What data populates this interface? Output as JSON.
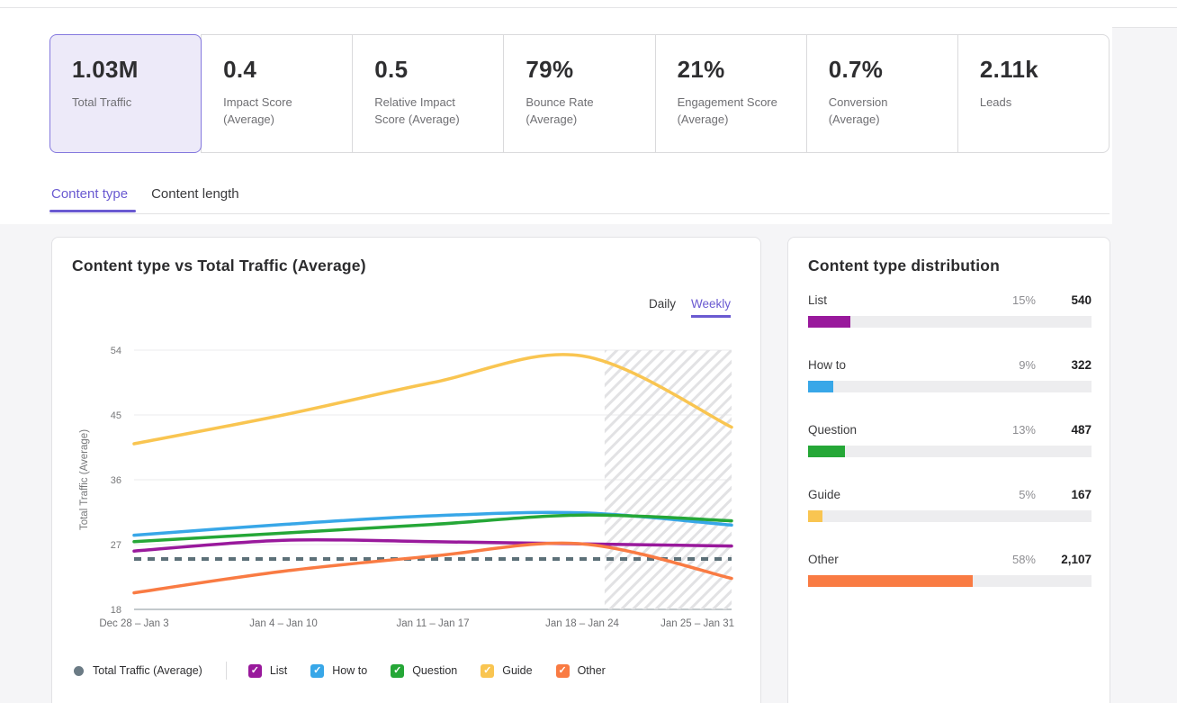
{
  "accent_color": "#6a5ad1",
  "kpis": [
    {
      "value": "1.03M",
      "label": "Total Traffic",
      "selected": true
    },
    {
      "value": "0.4",
      "label": "Impact Score (Average)",
      "selected": false
    },
    {
      "value": "0.5",
      "label": "Relative Impact Score (Average)",
      "selected": false
    },
    {
      "value": "79%",
      "label": "Bounce Rate (Average)",
      "selected": false
    },
    {
      "value": "21%",
      "label": "Engagement Score (Average)",
      "selected": false
    },
    {
      "value": "0.7%",
      "label": "Conversion (Average)",
      "selected": false
    },
    {
      "value": "2.11k",
      "label": "Leads",
      "selected": false
    }
  ],
  "tabs": [
    {
      "label": "Content type",
      "active": true
    },
    {
      "label": "Content length",
      "active": false
    }
  ],
  "granularity": {
    "options": [
      "Daily",
      "Weekly"
    ],
    "selected": "Weekly"
  },
  "chart_data": {
    "type": "line",
    "title": "Content type vs Total Traffic (Average)",
    "ylabel": "Total Traffic (Average)",
    "x_categories": [
      "Dec 28 – Jan 3",
      "Jan 4 – Jan 10",
      "Jan 11 – Jan 17",
      "Jan 18 – Jan 24",
      "Jan 25 – Jan 31"
    ],
    "ylim": [
      18,
      54
    ],
    "yticks": [
      18,
      27,
      36,
      45,
      54
    ],
    "grid": true,
    "legend_position": "bottom",
    "forecast_hatch_from_x_index": 3.15,
    "series": [
      {
        "name": "Total Traffic (Average)",
        "style": "dashed",
        "color": "#5c7078",
        "values": [
          25,
          25,
          25,
          25,
          25
        ]
      },
      {
        "name": "List",
        "style": "solid",
        "color": "#99199c",
        "values": [
          26.1,
          27.6,
          27.4,
          27.1,
          26.8
        ]
      },
      {
        "name": "How to",
        "style": "solid",
        "color": "#38a7e8",
        "values": [
          28.3,
          29.8,
          31.0,
          31.4,
          29.7
        ]
      },
      {
        "name": "Question",
        "style": "solid",
        "color": "#25a737",
        "values": [
          27.4,
          28.6,
          29.8,
          31.1,
          30.3
        ]
      },
      {
        "name": "Guide",
        "style": "solid",
        "color": "#f9c551",
        "values": [
          41.0,
          45.0,
          49.5,
          53.2,
          43.3
        ]
      },
      {
        "name": "Other",
        "style": "solid",
        "color": "#f97b43",
        "values": [
          20.3,
          23.3,
          25.4,
          27.1,
          22.3
        ]
      }
    ]
  },
  "right_panel": {
    "title": "Content type distribution",
    "rows": [
      {
        "label": "List",
        "pct": "15%",
        "pct_width": 15,
        "value": "540",
        "color": "#99199c"
      },
      {
        "label": "How to",
        "pct": "9%",
        "pct_width": 9,
        "value": "322",
        "color": "#38a7e8"
      },
      {
        "label": "Question",
        "pct": "13%",
        "pct_width": 13,
        "value": "487",
        "color": "#25a737"
      },
      {
        "label": "Guide",
        "pct": "5%",
        "pct_width": 5,
        "value": "167",
        "color": "#f9c551"
      },
      {
        "label": "Other",
        "pct": "58%",
        "pct_width": 58,
        "value": "2,107",
        "color": "#f97b43"
      }
    ]
  }
}
